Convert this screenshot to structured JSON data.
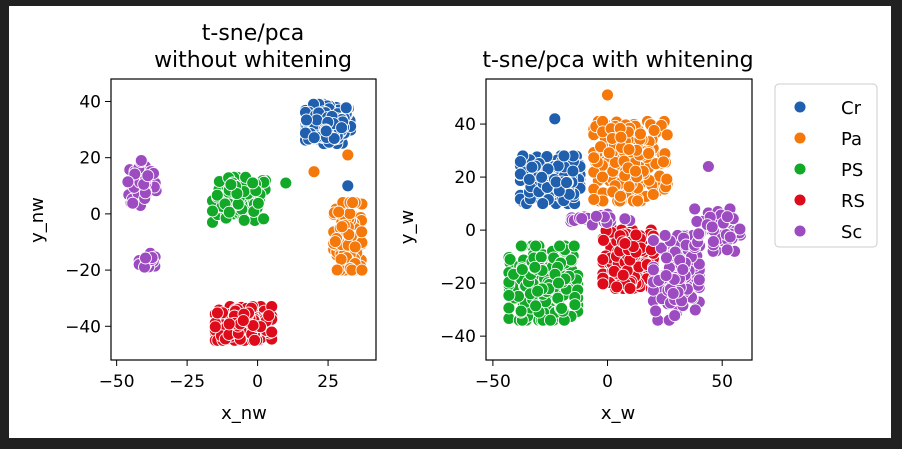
{
  "chart_data": [
    {
      "type": "scatter",
      "title": "t-sne/pca\nwithout whitening",
      "xlabel": "x_nw",
      "ylabel": "y_nw",
      "xlim": [
        -52,
        42
      ],
      "ylim": [
        -52,
        48
      ],
      "xticks": [
        -50,
        -25,
        0,
        25
      ],
      "yticks": [
        -40,
        -20,
        0,
        20,
        40
      ],
      "grid": false,
      "clusters": [
        {
          "series": "Cr",
          "center": [
            25,
            32
          ],
          "spread": [
            8,
            7
          ],
          "count": 170
        },
        {
          "series": "Pa",
          "center": [
            32,
            -8
          ],
          "spread": [
            5,
            12
          ],
          "count": 150
        },
        {
          "series": "PS",
          "center": [
            -6,
            5
          ],
          "spread": [
            10,
            8
          ],
          "count": 120
        },
        {
          "series": "RS",
          "center": [
            -5,
            -39
          ],
          "spread": [
            10,
            6
          ],
          "count": 170
        },
        {
          "series": "Sc",
          "center": [
            -41,
            11
          ],
          "spread": [
            5,
            8
          ],
          "count": 70
        },
        {
          "series": "Sc",
          "center": [
            -39,
            -17
          ],
          "spread": [
            3,
            3
          ],
          "count": 20
        }
      ],
      "outliers": [
        {
          "series": "Pa",
          "x": 32,
          "y": 21
        },
        {
          "series": "Pa",
          "x": 20,
          "y": 15
        },
        {
          "series": "PS",
          "x": 10,
          "y": 11
        },
        {
          "series": "Cr",
          "x": 32,
          "y": 10
        }
      ]
    },
    {
      "type": "scatter",
      "title": "t-sne/pca with whitening",
      "xlabel": "x_w",
      "ylabel": "y_w",
      "xlim": [
        -53,
        63
      ],
      "ylim": [
        -49,
        57
      ],
      "xticks": [
        -50,
        0,
        50
      ],
      "yticks": [
        -40,
        -20,
        0,
        20,
        40
      ],
      "grid": false,
      "clusters": [
        {
          "series": "Cr",
          "center": [
            -25,
            19
          ],
          "spread": [
            13,
            9
          ],
          "count": 160
        },
        {
          "series": "Pa",
          "center": [
            10,
            26
          ],
          "spread": [
            16,
            15
          ],
          "count": 220
        },
        {
          "series": "PS",
          "center": [
            -28,
            -20
          ],
          "spread": [
            15,
            14
          ],
          "count": 220
        },
        {
          "series": "RS",
          "center": [
            9,
            -11
          ],
          "spread": [
            11,
            11
          ],
          "count": 200
        },
        {
          "series": "Sc",
          "center": [
            30,
            -18
          ],
          "spread": [
            10,
            16
          ],
          "count": 120
        },
        {
          "series": "Sc",
          "center": [
            48,
            0
          ],
          "spread": [
            10,
            8
          ],
          "count": 50
        },
        {
          "series": "Sc",
          "center": [
            -3,
            4
          ],
          "spread": [
            13,
            2
          ],
          "count": 25
        }
      ],
      "outliers": [
        {
          "series": "Cr",
          "x": -23,
          "y": 42
        },
        {
          "series": "Pa",
          "x": 0,
          "y": 51
        },
        {
          "series": "Sc",
          "x": 44,
          "y": 24
        }
      ]
    }
  ],
  "legend": {
    "placement": "right",
    "items": [
      {
        "name": "Cr",
        "color": "#1f5fad"
      },
      {
        "name": "Pa",
        "color": "#f5780a"
      },
      {
        "name": "PS",
        "color": "#12a828"
      },
      {
        "name": "RS",
        "color": "#de0b1a"
      },
      {
        "name": "Sc",
        "color": "#9c4cc0"
      }
    ]
  }
}
